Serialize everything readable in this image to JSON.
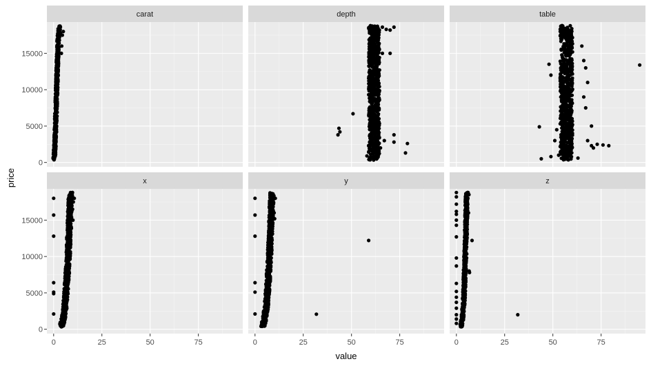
{
  "chart_data": {
    "type": "scatter",
    "facet_by": "variable",
    "xlabel": "value",
    "ylabel": "price",
    "xlim": [
      -3.5,
      98
    ],
    "ylim": [
      -600,
      19300
    ],
    "x_ticks": [
      0,
      25,
      50,
      75
    ],
    "y_ticks": [
      0,
      5000,
      10000,
      15000
    ],
    "y_tick_labels": [
      "0",
      "5000",
      "10000",
      "15000"
    ],
    "grid": true,
    "panel_background": "#ebebeb",
    "strip_background": "#d9d9d9",
    "point_color": "#000000",
    "facets": [
      {
        "name": "carat",
        "cores": [
          [
            0.2,
            326
          ],
          [
            0.5,
            1500
          ],
          [
            0.8,
            3000
          ],
          [
            1.0,
            5000
          ],
          [
            1.3,
            7500
          ],
          [
            1.6,
            10500
          ],
          [
            2.0,
            14000
          ],
          [
            2.4,
            17000
          ],
          [
            3.0,
            18823
          ]
        ],
        "width": 0.6,
        "outliers": [
          [
            4.0,
            15000
          ],
          [
            4.5,
            17500
          ],
          [
            5.0,
            18000
          ],
          [
            4.2,
            16000
          ],
          [
            3.5,
            17800
          ]
        ]
      },
      {
        "name": "depth",
        "cores": [
          [
            61.7,
            326
          ],
          [
            61.7,
            5000
          ],
          [
            61.7,
            10000
          ],
          [
            61.7,
            15000
          ],
          [
            61.7,
            18823
          ]
        ],
        "width": 2.8,
        "outliers": [
          [
            43,
            3800
          ],
          [
            44,
            4200
          ],
          [
            43.5,
            4700
          ],
          [
            50.8,
            6700
          ],
          [
            79,
            2600
          ],
          [
            78,
            1300
          ],
          [
            72,
            2800
          ],
          [
            72,
            3800
          ],
          [
            66,
            15000
          ],
          [
            70,
            15000
          ],
          [
            68,
            18300
          ],
          [
            70,
            18200
          ],
          [
            66,
            18600
          ],
          [
            72,
            18600
          ],
          [
            58,
            900
          ],
          [
            60,
            800
          ],
          [
            64,
            1200
          ],
          [
            65,
            2000
          ],
          [
            67,
            3000
          ]
        ]
      },
      {
        "name": "table",
        "cores": [
          [
            57,
            326
          ],
          [
            57,
            5000
          ],
          [
            57,
            10000
          ],
          [
            57,
            15000
          ],
          [
            57,
            18823
          ]
        ],
        "width": 3.2,
        "outliers": [
          [
            95,
            13400
          ],
          [
            43,
            4900
          ],
          [
            44,
            500
          ],
          [
            49,
            800
          ],
          [
            73,
            2500
          ],
          [
            76,
            2400
          ],
          [
            79,
            2300
          ],
          [
            70,
            2300
          ],
          [
            71,
            2000
          ],
          [
            67,
            7500
          ],
          [
            66,
            9000
          ],
          [
            68,
            11000
          ],
          [
            67,
            13000
          ],
          [
            66,
            14000
          ],
          [
            65,
            16000
          ],
          [
            49,
            12000
          ],
          [
            48,
            13500
          ],
          [
            52,
            4500
          ],
          [
            70,
            5000
          ],
          [
            68,
            3000
          ],
          [
            51,
            3000
          ],
          [
            53,
            1000
          ],
          [
            63,
            600
          ]
        ]
      },
      {
        "name": "x",
        "cores": [
          [
            4.0,
            326
          ],
          [
            5.0,
            1500
          ],
          [
            5.8,
            3000
          ],
          [
            6.4,
            5000
          ],
          [
            7.0,
            7500
          ],
          [
            7.6,
            10500
          ],
          [
            8.1,
            14000
          ],
          [
            8.5,
            17000
          ],
          [
            8.8,
            18823
          ]
        ],
        "width": 1.1,
        "outliers": [
          [
            0,
            18000
          ],
          [
            0,
            15700
          ],
          [
            0,
            12800
          ],
          [
            0,
            6400
          ],
          [
            0,
            5100
          ],
          [
            0,
            4900
          ],
          [
            0,
            2100
          ],
          [
            10.7,
            18000
          ],
          [
            10.2,
            17500
          ],
          [
            9.8,
            16500
          ],
          [
            10.0,
            15000
          ]
        ]
      },
      {
        "name": "y",
        "cores": [
          [
            4.0,
            326
          ],
          [
            5.0,
            1500
          ],
          [
            5.8,
            3000
          ],
          [
            6.4,
            5000
          ],
          [
            7.0,
            7500
          ],
          [
            7.6,
            10500
          ],
          [
            8.1,
            14000
          ],
          [
            8.5,
            17000
          ],
          [
            8.8,
            18823
          ]
        ],
        "width": 1.1,
        "outliers": [
          [
            0,
            18000
          ],
          [
            0,
            15700
          ],
          [
            0,
            12800
          ],
          [
            0,
            6400
          ],
          [
            0,
            5100
          ],
          [
            0,
            2100
          ],
          [
            58.9,
            12200
          ],
          [
            31.8,
            2075
          ],
          [
            10.5,
            18000
          ],
          [
            9.9,
            16000
          ],
          [
            10.2,
            15200
          ]
        ]
      },
      {
        "name": "z",
        "cores": [
          [
            2.4,
            326
          ],
          [
            3.1,
            1500
          ],
          [
            3.6,
            3000
          ],
          [
            4.0,
            5000
          ],
          [
            4.3,
            7500
          ],
          [
            4.7,
            10500
          ],
          [
            5.0,
            14000
          ],
          [
            5.2,
            17000
          ],
          [
            5.4,
            18823
          ]
        ],
        "width": 0.7,
        "outliers": [
          [
            0,
            18800
          ],
          [
            0,
            18200
          ],
          [
            0,
            17200
          ],
          [
            0,
            16200
          ],
          [
            0,
            15800
          ],
          [
            0,
            15000
          ],
          [
            0,
            14300
          ],
          [
            0,
            12700
          ],
          [
            0,
            9800
          ],
          [
            0,
            8700
          ],
          [
            0,
            6300
          ],
          [
            0,
            5200
          ],
          [
            0,
            4400
          ],
          [
            0,
            3700
          ],
          [
            0,
            2900
          ],
          [
            0,
            2000
          ],
          [
            0,
            1400
          ],
          [
            0,
            800
          ],
          [
            31.8,
            2000
          ],
          [
            8.1,
            12200
          ],
          [
            6.5,
            18500
          ],
          [
            6.3,
            16000
          ],
          [
            6.6,
            8000
          ],
          [
            6.8,
            7800
          ]
        ]
      }
    ]
  }
}
